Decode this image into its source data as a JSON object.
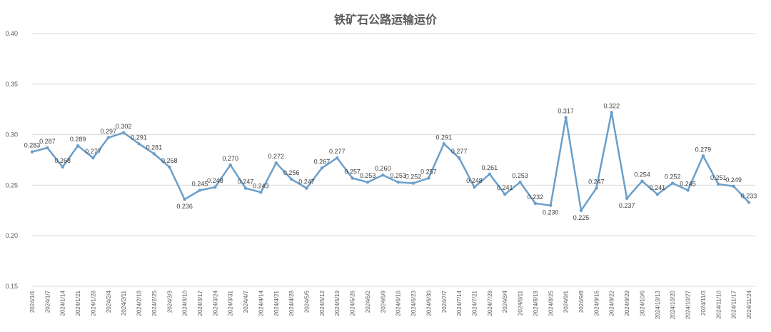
{
  "chart_data": {
    "type": "line",
    "title": "铁矿石公路运输运价",
    "xlabel": "",
    "ylabel": "",
    "ylim": [
      0.15,
      0.4
    ],
    "yticks": [
      "0.40",
      "0.35",
      "0.30",
      "0.25",
      "0.20",
      "0.15"
    ],
    "grid": true,
    "legend": "none",
    "line_color": "#6a9fcb",
    "categories": [
      "2024/1/1",
      "2024/1/7",
      "2024/1/14",
      "2024/1/21",
      "2024/1/28",
      "2024/2/4",
      "2024/2/11",
      "2024/2/18",
      "2024/2/25",
      "2024/3/3",
      "2024/3/10",
      "2024/3/17",
      "2024/3/24",
      "2024/3/31",
      "2024/4/7",
      "2024/4/14",
      "2024/4/21",
      "2024/4/28",
      "2024/5/5",
      "2024/5/12",
      "2024/5/19",
      "2024/5/26",
      "2024/6/2",
      "2024/6/9",
      "2024/6/16",
      "2024/6/23",
      "2024/6/30",
      "2024/7/7",
      "2024/7/14",
      "2024/7/21",
      "2024/7/28",
      "2024/8/4",
      "2024/8/11",
      "2024/8/18",
      "2024/8/25",
      "2024/9/1",
      "2024/9/8",
      "2024/9/15",
      "2024/9/22",
      "2024/9/29",
      "2024/10/6",
      "2024/10/13",
      "2024/10/20",
      "2024/10/27",
      "2024/11/3",
      "2024/11/10",
      "2024/11/17",
      "2024/11/24"
    ],
    "values": [
      0.283,
      0.287,
      0.268,
      0.289,
      0.277,
      0.297,
      0.302,
      0.291,
      0.281,
      0.268,
      0.236,
      0.245,
      0.248,
      0.27,
      0.247,
      0.243,
      0.272,
      0.256,
      0.247,
      0.267,
      0.277,
      0.257,
      0.253,
      0.26,
      0.253,
      0.252,
      0.257,
      0.291,
      0.277,
      0.248,
      0.261,
      0.241,
      0.253,
      0.232,
      0.23,
      0.317,
      0.225,
      0.247,
      0.322,
      0.237,
      0.254,
      0.241,
      0.252,
      0.245,
      0.279,
      0.251,
      0.249,
      0.233
    ],
    "labels": [
      "0.283",
      "0.287",
      "0.268",
      "0.289",
      "0.277",
      "0.297",
      "0.302",
      "0.291",
      "0.281",
      "0.268",
      "0.236",
      "0.245",
      "0.248",
      "0.270",
      "0.247",
      "0.243",
      "0.272",
      "0.256",
      "0.247",
      "0.267",
      "0.277",
      "0.257",
      "0.253",
      "0.260",
      "0.253",
      "0.252",
      "0.257",
      "0.291",
      "0.277",
      "0.248",
      "0.261",
      "0.241",
      "0.253",
      "0.232",
      "0.230",
      "0.317",
      "0.225",
      "0.247",
      "0.322",
      "0.237",
      "0.254",
      "0.241",
      "0.252",
      "0.245",
      "0.279",
      "0.251",
      "0.249",
      "0.233"
    ]
  }
}
